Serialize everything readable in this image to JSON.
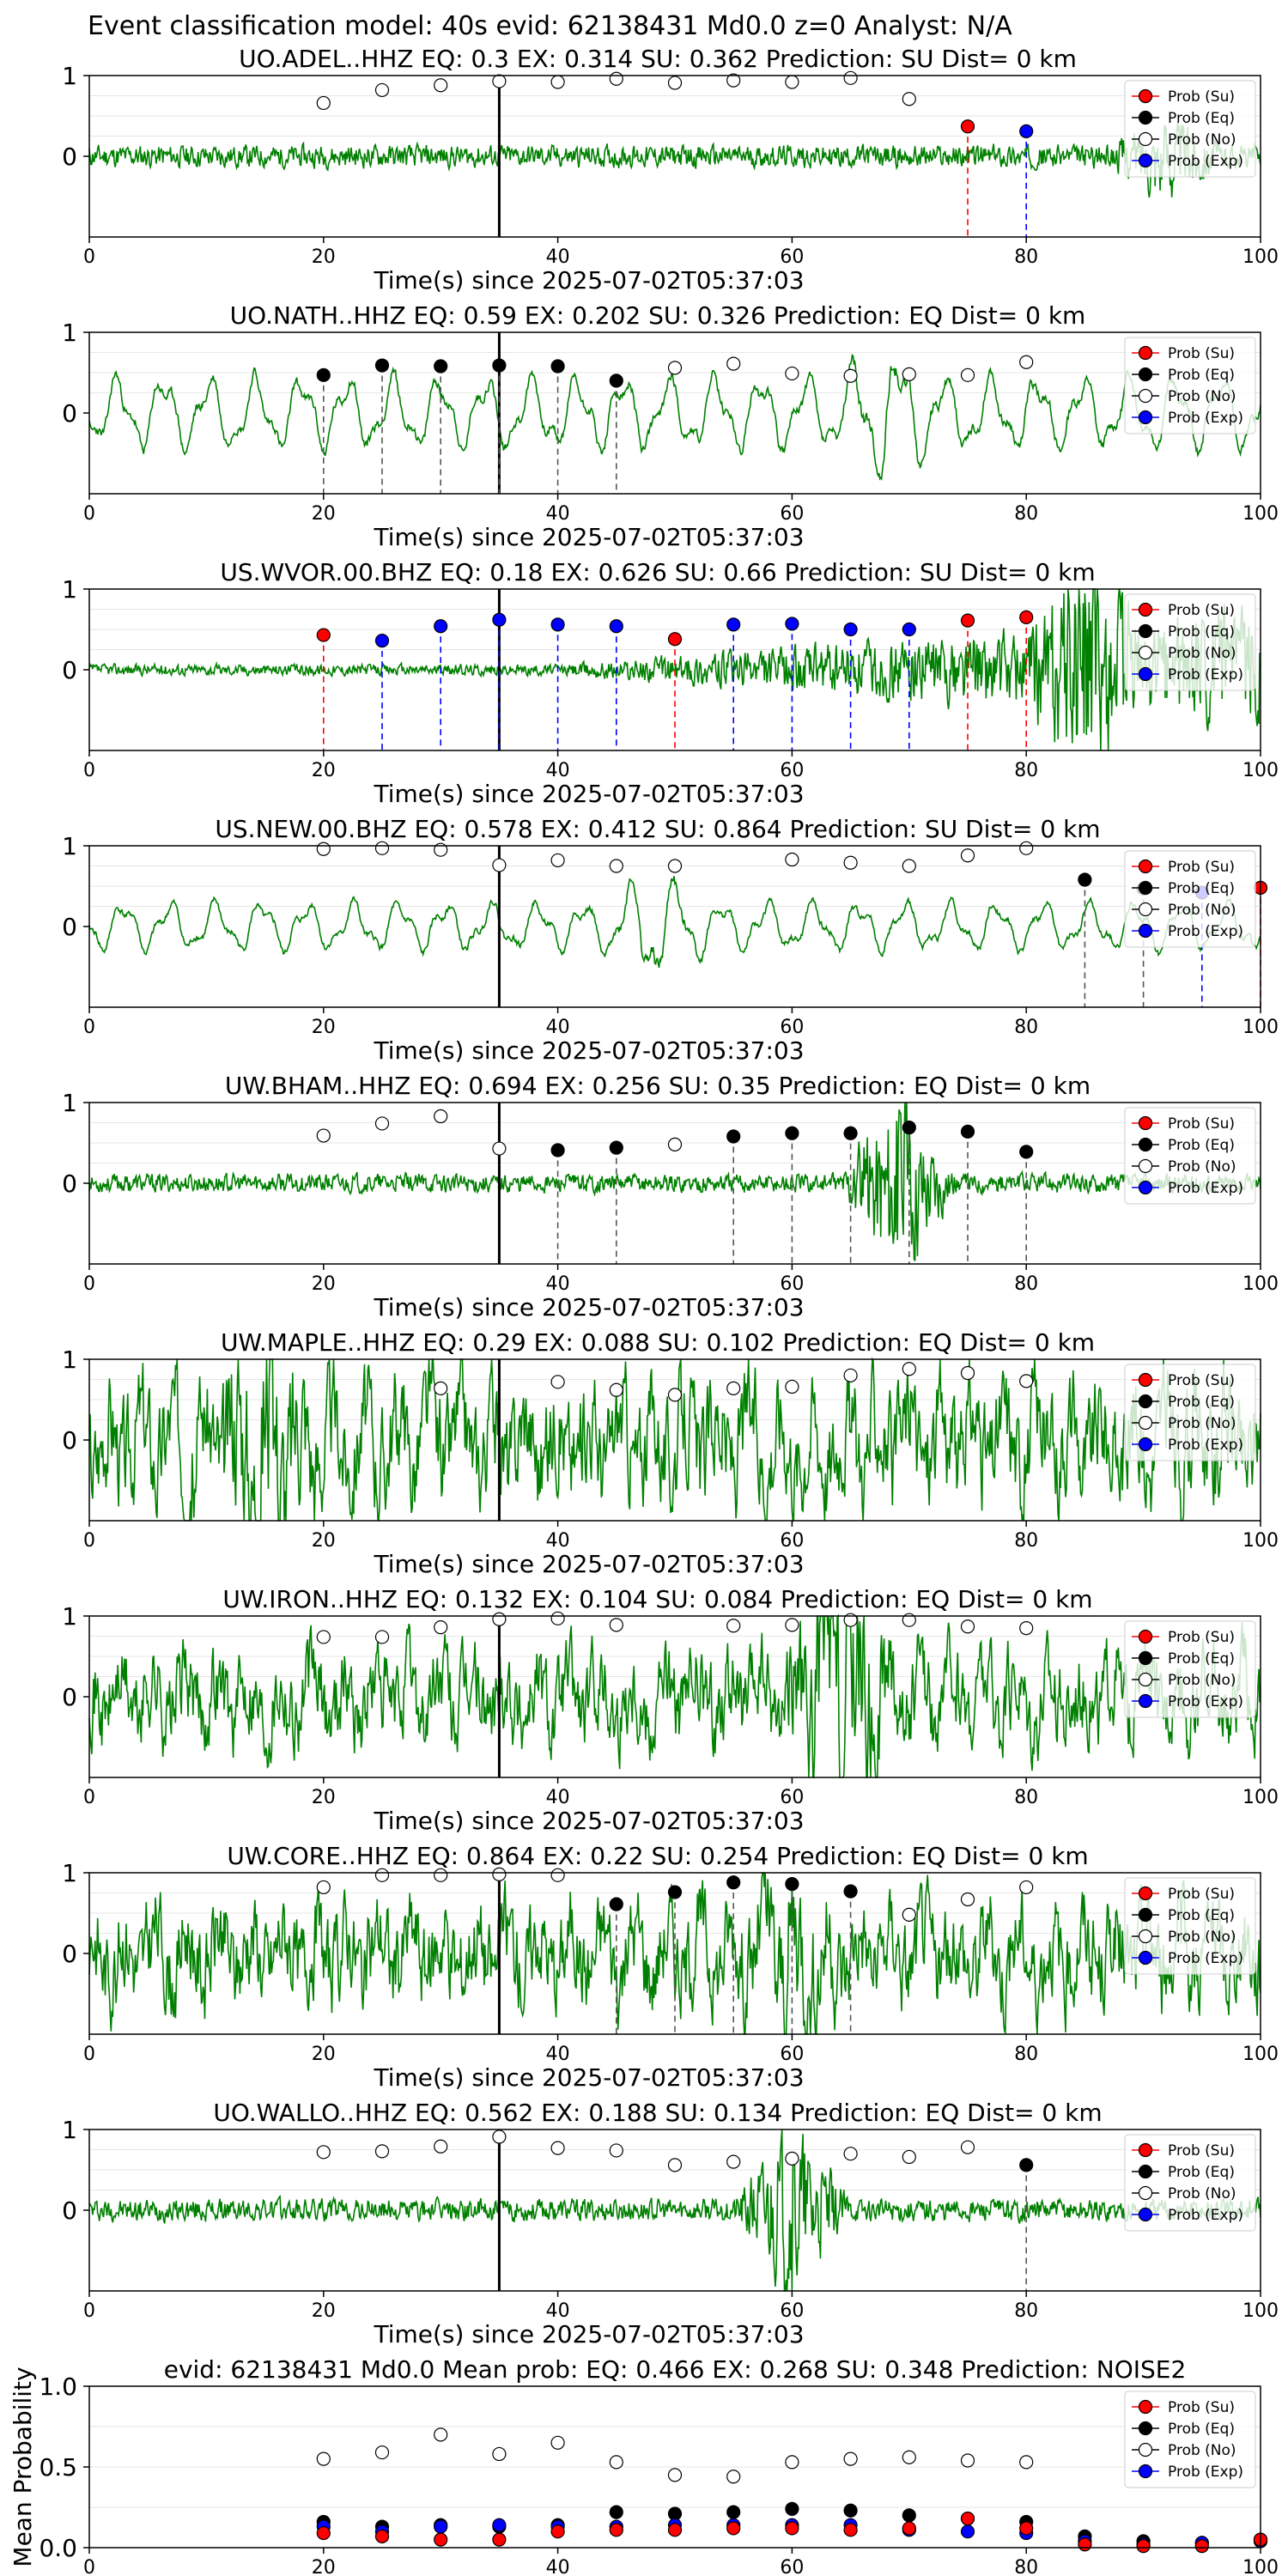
{
  "figure": {
    "suptitle": "Event classification model: 40s evid: 62138431 Md0.0 z=0 Analyst: N/A"
  },
  "legend": {
    "entries": [
      {
        "label": "Prob (Su)",
        "color": "#ff0000"
      },
      {
        "label": "Prob (Eq)",
        "color": "#000000"
      },
      {
        "label": "Prob (No)",
        "color": "#ffffff"
      },
      {
        "label": "Prob (Exp)",
        "color": "#0000ff"
      }
    ]
  },
  "colors": {
    "waveform": "#008000",
    "su": "#ff0000",
    "eq": "#000000",
    "no": "#ffffff",
    "exp": "#0000ff"
  },
  "chart_data": [
    {
      "type": "line",
      "title": "UO.ADEL..HHZ   EQ: 0.3  EX: 0.314  SU: 0.362   Prediction: SU    Dist= 0 km",
      "xlabel": "Time(s) since 2025-07-02T05:37:03",
      "ylabel": "",
      "xlim": [
        0,
        100
      ],
      "ylim": [
        -1,
        1
      ],
      "xticks": [
        0,
        20,
        40,
        60,
        80,
        100
      ],
      "yticks": [
        "1",
        "0"
      ],
      "pick_time": 35,
      "noise_amp": 0.12,
      "seed": 11,
      "style": "noise",
      "burst_at": 92,
      "burst_amp": 0.35,
      "points": [
        {
          "x": 20,
          "y": 0.66,
          "cls": "no"
        },
        {
          "x": 25,
          "y": 0.82,
          "cls": "no"
        },
        {
          "x": 30,
          "y": 0.88,
          "cls": "no"
        },
        {
          "x": 35,
          "y": 0.93,
          "cls": "no"
        },
        {
          "x": 40,
          "y": 0.92,
          "cls": "no"
        },
        {
          "x": 45,
          "y": 0.96,
          "cls": "no"
        },
        {
          "x": 50,
          "y": 0.91,
          "cls": "no"
        },
        {
          "x": 55,
          "y": 0.94,
          "cls": "no"
        },
        {
          "x": 60,
          "y": 0.92,
          "cls": "no"
        },
        {
          "x": 65,
          "y": 0.97,
          "cls": "no"
        },
        {
          "x": 70,
          "y": 0.71,
          "cls": "no"
        },
        {
          "x": 75,
          "y": 0.37,
          "cls": "su"
        },
        {
          "x": 80,
          "y": 0.31,
          "cls": "exp"
        }
      ]
    },
    {
      "type": "line",
      "title": "UO.NATH..HHZ   EQ: 0.59  EX: 0.202  SU: 0.326   Prediction: EQ    Dist= 0 km",
      "xlabel": "Time(s) since 2025-07-02T05:37:03",
      "ylabel": "",
      "xlim": [
        0,
        100
      ],
      "ylim": [
        -1,
        1
      ],
      "xticks": [
        0,
        20,
        40,
        60,
        80,
        100
      ],
      "yticks": [
        "1",
        "0"
      ],
      "pick_time": 35,
      "noise_amp": 0.45,
      "seed": 23,
      "style": "smooth",
      "burst_at": 68,
      "burst_amp": 0.4,
      "points": [
        {
          "x": 20,
          "y": 0.47,
          "cls": "eq"
        },
        {
          "x": 25,
          "y": 0.59,
          "cls": "eq"
        },
        {
          "x": 30,
          "y": 0.58,
          "cls": "eq"
        },
        {
          "x": 35,
          "y": 0.59,
          "cls": "eq"
        },
        {
          "x": 40,
          "y": 0.58,
          "cls": "eq"
        },
        {
          "x": 45,
          "y": 0.4,
          "cls": "eq"
        },
        {
          "x": 50,
          "y": 0.56,
          "cls": "no"
        },
        {
          "x": 55,
          "y": 0.61,
          "cls": "no"
        },
        {
          "x": 60,
          "y": 0.49,
          "cls": "no"
        },
        {
          "x": 65,
          "y": 0.46,
          "cls": "no"
        },
        {
          "x": 70,
          "y": 0.48,
          "cls": "no"
        },
        {
          "x": 75,
          "y": 0.47,
          "cls": "no"
        },
        {
          "x": 80,
          "y": 0.63,
          "cls": "no"
        }
      ]
    },
    {
      "type": "line",
      "title": "US.WVOR.00.BHZ   EQ: 0.18  EX: 0.626  SU: 0.66   Prediction: SU    Dist= 0 km",
      "xlabel": "Time(s) since 2025-07-02T05:37:03",
      "ylabel": "",
      "xlim": [
        0,
        100
      ],
      "ylim": [
        -1,
        1
      ],
      "xticks": [
        0,
        20,
        40,
        60,
        80,
        100
      ],
      "yticks": [
        "1",
        "0"
      ],
      "pick_time": 35,
      "noise_amp": 0.06,
      "seed": 37,
      "style": "growing",
      "burst_at": 85,
      "burst_amp": 0.8,
      "points": [
        {
          "x": 20,
          "y": 0.43,
          "cls": "su"
        },
        {
          "x": 25,
          "y": 0.36,
          "cls": "exp"
        },
        {
          "x": 30,
          "y": 0.54,
          "cls": "exp"
        },
        {
          "x": 35,
          "y": 0.62,
          "cls": "exp"
        },
        {
          "x": 40,
          "y": 0.56,
          "cls": "exp"
        },
        {
          "x": 45,
          "y": 0.54,
          "cls": "exp"
        },
        {
          "x": 50,
          "y": 0.38,
          "cls": "su"
        },
        {
          "x": 55,
          "y": 0.56,
          "cls": "exp"
        },
        {
          "x": 60,
          "y": 0.57,
          "cls": "exp"
        },
        {
          "x": 65,
          "y": 0.5,
          "cls": "exp"
        },
        {
          "x": 70,
          "y": 0.5,
          "cls": "exp"
        },
        {
          "x": 75,
          "y": 0.61,
          "cls": "su"
        },
        {
          "x": 80,
          "y": 0.65,
          "cls": "su"
        }
      ]
    },
    {
      "type": "line",
      "title": "US.NEW.00.BHZ   EQ: 0.578  EX: 0.412  SU: 0.864   Prediction: SU    Dist= 0 km",
      "xlabel": "Time(s) since 2025-07-02T05:37:03",
      "ylabel": "",
      "xlim": [
        0,
        100
      ],
      "ylim": [
        -1,
        1
      ],
      "xticks": [
        0,
        20,
        40,
        60,
        80,
        100
      ],
      "yticks": [
        "1",
        "0"
      ],
      "pick_time": 35,
      "noise_amp": 0.3,
      "seed": 41,
      "style": "smooth",
      "burst_at": 48,
      "burst_amp": 0.45,
      "points": [
        {
          "x": 20,
          "y": 0.96,
          "cls": "no"
        },
        {
          "x": 25,
          "y": 0.97,
          "cls": "no"
        },
        {
          "x": 30,
          "y": 0.95,
          "cls": "no"
        },
        {
          "x": 35,
          "y": 0.76,
          "cls": "no"
        },
        {
          "x": 40,
          "y": 0.82,
          "cls": "no"
        },
        {
          "x": 45,
          "y": 0.75,
          "cls": "no"
        },
        {
          "x": 50,
          "y": 0.75,
          "cls": "no"
        },
        {
          "x": 60,
          "y": 0.83,
          "cls": "no"
        },
        {
          "x": 65,
          "y": 0.79,
          "cls": "no"
        },
        {
          "x": 70,
          "y": 0.75,
          "cls": "no"
        },
        {
          "x": 75,
          "y": 0.88,
          "cls": "no"
        },
        {
          "x": 80,
          "y": 0.97,
          "cls": "no"
        },
        {
          "x": 85,
          "y": 0.58,
          "cls": "eq"
        },
        {
          "x": 90,
          "y": 0.47,
          "cls": "eq"
        },
        {
          "x": 95,
          "y": 0.42,
          "cls": "exp"
        },
        {
          "x": 100,
          "y": 0.48,
          "cls": "su"
        }
      ]
    },
    {
      "type": "line",
      "title": "UW.BHAM..HHZ   EQ: 0.694  EX: 0.256  SU: 0.35   Prediction: EQ    Dist= 0 km",
      "xlabel": "Time(s) since 2025-07-02T05:37:03",
      "ylabel": "",
      "xlim": [
        0,
        100
      ],
      "ylim": [
        -1,
        1
      ],
      "xticks": [
        0,
        20,
        40,
        60,
        80,
        100
      ],
      "yticks": [
        "1",
        "0"
      ],
      "pick_time": 35,
      "noise_amp": 0.1,
      "seed": 53,
      "style": "noise",
      "burst_at": 69,
      "burst_amp": 0.95,
      "points": [
        {
          "x": 20,
          "y": 0.59,
          "cls": "no"
        },
        {
          "x": 25,
          "y": 0.74,
          "cls": "no"
        },
        {
          "x": 30,
          "y": 0.83,
          "cls": "no"
        },
        {
          "x": 35,
          "y": 0.43,
          "cls": "no"
        },
        {
          "x": 40,
          "y": 0.41,
          "cls": "eq"
        },
        {
          "x": 45,
          "y": 0.44,
          "cls": "eq"
        },
        {
          "x": 50,
          "y": 0.48,
          "cls": "no"
        },
        {
          "x": 55,
          "y": 0.58,
          "cls": "eq"
        },
        {
          "x": 60,
          "y": 0.62,
          "cls": "eq"
        },
        {
          "x": 65,
          "y": 0.62,
          "cls": "eq"
        },
        {
          "x": 70,
          "y": 0.69,
          "cls": "eq"
        },
        {
          "x": 75,
          "y": 0.64,
          "cls": "eq"
        },
        {
          "x": 80,
          "y": 0.39,
          "cls": "eq"
        }
      ]
    },
    {
      "type": "line",
      "title": "UW.MAPLE..HHZ   EQ: 0.29  EX: 0.088  SU: 0.102   Prediction: EQ    Dist= 0 km",
      "xlabel": "Time(s) since 2025-07-02T05:37:03",
      "ylabel": "",
      "xlim": [
        0,
        100
      ],
      "ylim": [
        -1,
        1
      ],
      "xticks": [
        0,
        20,
        40,
        60,
        80,
        100
      ],
      "yticks": [
        "1",
        "0"
      ],
      "pick_time": 35,
      "noise_amp": 0.45,
      "seed": 67,
      "style": "rough",
      "burst_at": 15,
      "burst_amp": 0.5,
      "points": [
        {
          "x": 30,
          "y": 0.64,
          "cls": "no"
        },
        {
          "x": 40,
          "y": 0.72,
          "cls": "no"
        },
        {
          "x": 45,
          "y": 0.62,
          "cls": "no"
        },
        {
          "x": 50,
          "y": 0.56,
          "cls": "no"
        },
        {
          "x": 55,
          "y": 0.64,
          "cls": "no"
        },
        {
          "x": 60,
          "y": 0.66,
          "cls": "no"
        },
        {
          "x": 65,
          "y": 0.8,
          "cls": "no"
        },
        {
          "x": 70,
          "y": 0.88,
          "cls": "no"
        },
        {
          "x": 75,
          "y": 0.83,
          "cls": "no"
        },
        {
          "x": 80,
          "y": 0.73,
          "cls": "no"
        }
      ]
    },
    {
      "type": "line",
      "title": "UW.IRON..HHZ   EQ: 0.132  EX: 0.104  SU: 0.084   Prediction: EQ    Dist= 0 km",
      "xlabel": "Time(s) since 2025-07-02T05:37:03",
      "ylabel": "",
      "xlim": [
        0,
        100
      ],
      "ylim": [
        -1,
        1
      ],
      "xticks": [
        0,
        20,
        40,
        60,
        80,
        100
      ],
      "yticks": [
        "1",
        "0"
      ],
      "pick_time": 35,
      "noise_amp": 0.35,
      "seed": 71,
      "style": "rough",
      "burst_at": 64,
      "burst_amp": 0.7,
      "points": [
        {
          "x": 20,
          "y": 0.74,
          "cls": "no"
        },
        {
          "x": 25,
          "y": 0.74,
          "cls": "no"
        },
        {
          "x": 30,
          "y": 0.86,
          "cls": "no"
        },
        {
          "x": 35,
          "y": 0.96,
          "cls": "no"
        },
        {
          "x": 40,
          "y": 0.97,
          "cls": "no"
        },
        {
          "x": 45,
          "y": 0.89,
          "cls": "no"
        },
        {
          "x": 55,
          "y": 0.88,
          "cls": "no"
        },
        {
          "x": 60,
          "y": 0.89,
          "cls": "no"
        },
        {
          "x": 65,
          "y": 0.95,
          "cls": "no"
        },
        {
          "x": 70,
          "y": 0.95,
          "cls": "no"
        },
        {
          "x": 75,
          "y": 0.87,
          "cls": "no"
        },
        {
          "x": 80,
          "y": 0.85,
          "cls": "no"
        }
      ]
    },
    {
      "type": "line",
      "title": "UW.CORE..HHZ   EQ: 0.864  EX: 0.22  SU: 0.254   Prediction: EQ    Dist= 0 km",
      "xlabel": "Time(s) since 2025-07-02T05:37:03",
      "ylabel": "",
      "xlim": [
        0,
        100
      ],
      "ylim": [
        -1,
        1
      ],
      "xticks": [
        0,
        20,
        40,
        60,
        80,
        100
      ],
      "yticks": [
        "1",
        "0"
      ],
      "pick_time": 35,
      "noise_amp": 0.38,
      "seed": 83,
      "style": "rough",
      "burst_at": 60,
      "burst_amp": 0.3,
      "points": [
        {
          "x": 20,
          "y": 0.82,
          "cls": "no"
        },
        {
          "x": 25,
          "y": 0.97,
          "cls": "no"
        },
        {
          "x": 30,
          "y": 0.97,
          "cls": "no"
        },
        {
          "x": 35,
          "y": 0.98,
          "cls": "no"
        },
        {
          "x": 40,
          "y": 0.97,
          "cls": "no"
        },
        {
          "x": 45,
          "y": 0.61,
          "cls": "eq"
        },
        {
          "x": 50,
          "y": 0.76,
          "cls": "eq"
        },
        {
          "x": 55,
          "y": 0.88,
          "cls": "eq"
        },
        {
          "x": 60,
          "y": 0.86,
          "cls": "eq"
        },
        {
          "x": 65,
          "y": 0.77,
          "cls": "eq"
        },
        {
          "x": 70,
          "y": 0.48,
          "cls": "no"
        },
        {
          "x": 75,
          "y": 0.67,
          "cls": "no"
        },
        {
          "x": 80,
          "y": 0.82,
          "cls": "no"
        }
      ]
    },
    {
      "type": "line",
      "title": "UO.WALLO..HHZ   EQ: 0.562  EX: 0.188  SU: 0.134   Prediction: EQ    Dist= 0 km",
      "xlabel": "Time(s) since 2025-07-02T05:37:03",
      "ylabel": "",
      "xlim": [
        0,
        100
      ],
      "ylim": [
        -1,
        1
      ],
      "xticks": [
        0,
        20,
        40,
        60,
        80,
        100
      ],
      "yticks": [
        "1",
        "0"
      ],
      "pick_time": 35,
      "noise_amp": 0.12,
      "seed": 97,
      "style": "noise",
      "burst_at": 60,
      "burst_amp": 0.85,
      "points": [
        {
          "x": 20,
          "y": 0.72,
          "cls": "no"
        },
        {
          "x": 25,
          "y": 0.73,
          "cls": "no"
        },
        {
          "x": 30,
          "y": 0.79,
          "cls": "no"
        },
        {
          "x": 35,
          "y": 0.91,
          "cls": "no"
        },
        {
          "x": 40,
          "y": 0.77,
          "cls": "no"
        },
        {
          "x": 45,
          "y": 0.74,
          "cls": "no"
        },
        {
          "x": 50,
          "y": 0.56,
          "cls": "no"
        },
        {
          "x": 55,
          "y": 0.6,
          "cls": "no"
        },
        {
          "x": 60,
          "y": 0.64,
          "cls": "no"
        },
        {
          "x": 65,
          "y": 0.7,
          "cls": "no"
        },
        {
          "x": 70,
          "y": 0.66,
          "cls": "no"
        },
        {
          "x": 75,
          "y": 0.78,
          "cls": "no"
        },
        {
          "x": 80,
          "y": 0.56,
          "cls": "eq"
        }
      ]
    },
    {
      "type": "scatter",
      "title": "evid: 62138431  Md0.0   Mean prob:    EQ: 0.466  EX: 0.268  SU: 0.348   Prediction: NOISE2",
      "xlabel": "",
      "ylabel": "Mean Probability",
      "xlim": [
        0,
        100
      ],
      "ylim": [
        0,
        1
      ],
      "xticks": [
        0,
        20,
        40,
        60,
        80,
        100
      ],
      "yticks": [
        0.0,
        0.5,
        1.0
      ],
      "x": [
        20,
        25,
        30,
        35,
        40,
        45,
        50,
        55,
        60,
        65,
        70,
        75,
        80,
        85,
        90,
        95,
        100
      ],
      "series": [
        {
          "name": "Prob (No)",
          "cls": "no",
          "values": [
            0.55,
            0.59,
            0.7,
            0.58,
            0.65,
            0.53,
            0.45,
            0.44,
            0.53,
            0.55,
            0.56,
            0.54,
            0.53,
            null,
            null,
            null,
            null
          ]
        },
        {
          "name": "Prob (Eq)",
          "cls": "eq",
          "values": [
            0.16,
            0.13,
            0.14,
            0.13,
            0.14,
            0.22,
            0.21,
            0.22,
            0.24,
            0.23,
            0.2,
            0.18,
            0.16,
            0.07,
            0.04,
            0.03,
            0.05
          ]
        },
        {
          "name": "Prob (Exp)",
          "cls": "exp",
          "values": [
            0.13,
            0.1,
            0.13,
            0.14,
            0.13,
            0.13,
            0.14,
            0.14,
            0.14,
            0.14,
            0.11,
            0.1,
            0.09,
            0.04,
            0.02,
            0.03,
            0.04
          ]
        },
        {
          "name": "Prob (Su)",
          "cls": "su",
          "values": [
            0.09,
            0.07,
            0.05,
            0.05,
            0.1,
            0.11,
            0.11,
            0.12,
            0.12,
            0.11,
            0.12,
            0.18,
            0.12,
            0.02,
            0.01,
            0.01,
            0.05
          ]
        }
      ]
    }
  ]
}
